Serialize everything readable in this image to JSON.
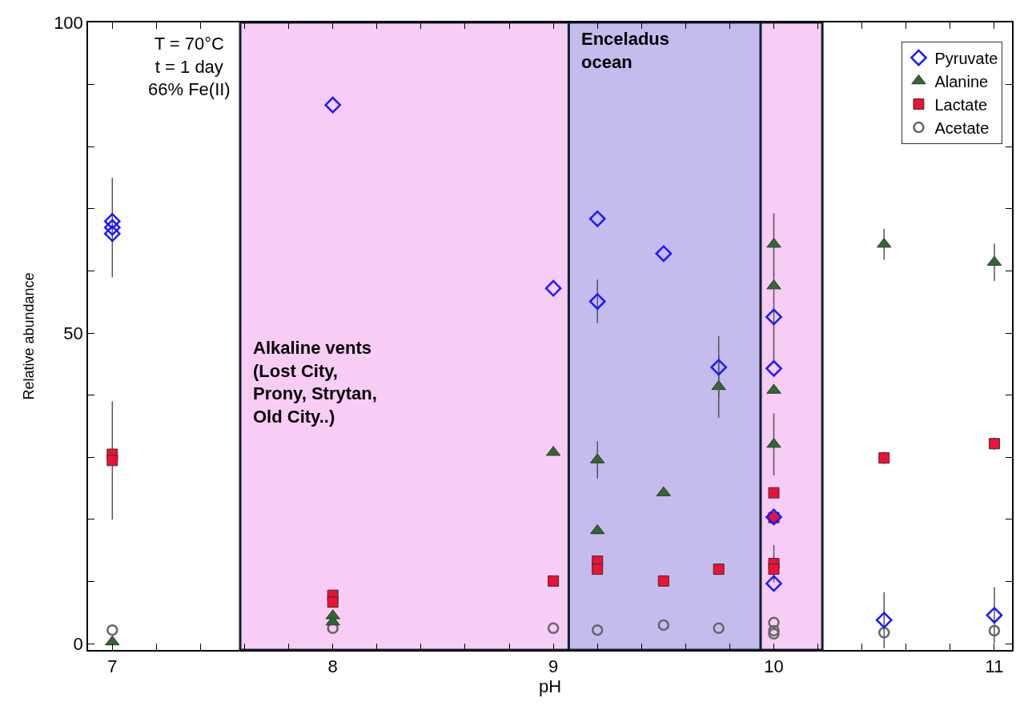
{
  "chart_data": {
    "type": "scatter",
    "xlabel": "pH",
    "ylabel": "Relative abundance",
    "xlim": [
      6.89,
      11.08
    ],
    "ylim": [
      -1,
      100
    ],
    "xticks": [
      7,
      {
        "value": 7.2,
        "label": null
      },
      {
        "value": 7.4,
        "label": null
      },
      {
        "value": 7.6,
        "label": null
      },
      {
        "value": 7.8,
        "label": null
      },
      8,
      {
        "value": 8.2,
        "label": null
      },
      {
        "value": 8.4,
        "label": null
      },
      {
        "value": 8.6,
        "label": null
      },
      {
        "value": 8.8,
        "label": null
      },
      9,
      {
        "value": 9.2,
        "label": null
      },
      {
        "value": 9.4,
        "label": null
      },
      {
        "value": 9.6,
        "label": null
      },
      {
        "value": 9.8,
        "label": null
      },
      10,
      {
        "value": 10.2,
        "label": null
      },
      {
        "value": 10.4,
        "label": null
      },
      {
        "value": 10.6,
        "label": null
      },
      {
        "value": 10.8,
        "label": null
      },
      11
    ],
    "yticks": [
      0,
      {
        "value": 10,
        "label": null
      },
      {
        "value": 20,
        "label": null
      },
      {
        "value": 30,
        "label": null
      },
      {
        "value": 40,
        "label": null
      },
      50,
      {
        "value": 60,
        "label": null
      },
      {
        "value": 70,
        "label": null
      },
      {
        "value": 80,
        "label": null
      },
      {
        "value": 90,
        "label": null
      },
      100
    ],
    "grid": false,
    "legend": "top right",
    "series": [
      {
        "name": "Pyruvate",
        "color": "#1a1aff",
        "marker": "diamond",
        "x": [
          7,
          7,
          7,
          8,
          9,
          9.2,
          9.2,
          9.5,
          9.75,
          10,
          10,
          10,
          10,
          10.5,
          11
        ],
        "values": [
          68,
          67,
          66,
          86.7,
          57.2,
          68.4,
          55.1,
          62.8,
          44.5,
          52.6,
          44.3,
          20.4,
          9.7,
          3.8,
          4.6
        ],
        "errors": [
          null,
          8,
          null,
          null,
          null,
          null,
          3.5,
          null,
          5,
          7,
          null,
          null,
          null,
          4.5,
          4.5
        ]
      },
      {
        "name": "Alanine",
        "color": "#2d6a2d",
        "marker": "triangle",
        "x": [
          7,
          8,
          8,
          9,
          9.2,
          9.2,
          9.5,
          9.75,
          10,
          10,
          10,
          10,
          10.5,
          11
        ],
        "values": [
          0.3,
          3.5,
          4.5,
          30.8,
          29.6,
          18.2,
          24.3,
          41.4,
          64.3,
          57.6,
          40.8,
          32.1,
          64.3,
          61.4
        ],
        "errors": [
          null,
          null,
          null,
          null,
          3,
          null,
          null,
          5,
          5,
          null,
          null,
          5,
          2.5,
          3
        ]
      },
      {
        "name": "Lactate",
        "color": "#ee1133",
        "marker": "square",
        "x": [
          7,
          7,
          8,
          8,
          9,
          9.2,
          9.2,
          9.5,
          9.75,
          10,
          10,
          10,
          10,
          10.5,
          11
        ],
        "values": [
          30.5,
          29.5,
          7.8,
          6.7,
          10.1,
          13.3,
          12,
          10.1,
          12,
          24.3,
          20.3,
          12.9,
          12,
          29.9,
          32.2
        ],
        "errors": [
          null,
          9.5,
          null,
          null,
          null,
          null,
          null,
          null,
          null,
          null,
          null,
          3,
          null,
          1,
          1
        ]
      },
      {
        "name": "Acetate",
        "color": "#666666",
        "marker": "circle",
        "x": [
          7,
          8,
          9,
          9.2,
          9.5,
          9.75,
          10,
          10,
          10,
          10.5,
          11
        ],
        "values": [
          2.2,
          2.5,
          2.5,
          2.2,
          3,
          2.5,
          3.4,
          2.1,
          1.6,
          1.8,
          2.1
        ]
      }
    ],
    "bands": [
      {
        "axis": "x",
        "from": 7.58,
        "to": 10.22,
        "label": "Alkaline vents\n(Lost City,\nProny, Strytan,\nOld City..)",
        "color": "#f7ccf5"
      },
      {
        "axis": "x",
        "from": 9.07,
        "to": 9.94,
        "label": "Enceladus\nocean",
        "color": "#c5bbec"
      }
    ],
    "annotations": [
      "T = 70°C\nt = 1 day\n66% Fe(II)"
    ]
  }
}
